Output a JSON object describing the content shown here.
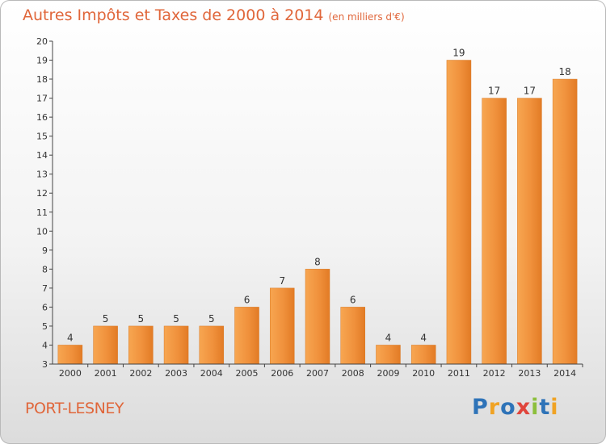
{
  "chart_data": {
    "type": "bar",
    "title": "Autres Impôts et Taxes de 2000 à 2014",
    "subtitle": "(en milliers d'€)",
    "xlabel": "",
    "ylabel": "",
    "ylim": [
      3,
      20
    ],
    "yticks": [
      "3",
      "4",
      "5",
      "6",
      "7",
      "8",
      "9",
      "10",
      "11",
      "12",
      "13",
      "14",
      "15",
      "16",
      "17",
      "18",
      "19",
      "20"
    ],
    "categories": [
      "2000",
      "2001",
      "2002",
      "2003",
      "2004",
      "2005",
      "2006",
      "2007",
      "2008",
      "2009",
      "2010",
      "2011",
      "2012",
      "2013",
      "2014"
    ],
    "values": [
      4,
      5,
      5,
      5,
      5,
      6,
      7,
      8,
      6,
      4,
      4,
      19,
      17,
      17,
      18
    ],
    "data_labels": [
      "4",
      "5",
      "5",
      "5",
      "5",
      "6",
      "7",
      "8",
      "6",
      "4",
      "4",
      "19",
      "17",
      "17",
      "18"
    ],
    "grid": false,
    "bar_color": "#f0913c"
  },
  "footer": {
    "city": "PORT-LESNEY",
    "logo_letters": [
      "P",
      "r",
      "o",
      "x",
      "i",
      "t",
      "i"
    ],
    "logo_colors": [
      "#2e73b8",
      "#f0a324",
      "#2e73b8",
      "#e0453c",
      "#8cbf3c",
      "#2e73b8",
      "#f0a324"
    ]
  }
}
